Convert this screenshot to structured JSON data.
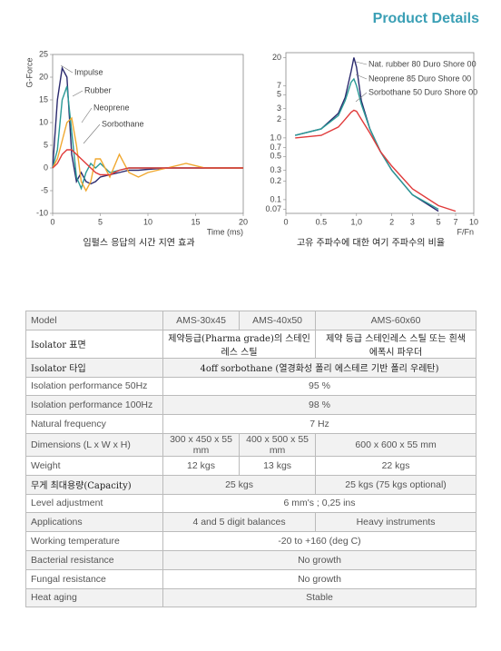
{
  "header": {
    "title": "Product Details"
  },
  "chart_data": [
    {
      "type": "line",
      "caption": "임펄스 응답의 시간 지연 효과",
      "xlabel": "Time (ms)",
      "ylabel": "G-Force",
      "x": [
        0,
        0.5,
        1,
        1.5,
        2,
        2.5,
        3,
        3.5,
        4,
        4.5,
        5,
        6,
        7,
        8,
        9,
        10,
        12,
        14,
        16,
        18,
        20
      ],
      "xlim": [
        0,
        20
      ],
      "xticks": [
        0,
        5,
        10,
        15,
        20
      ],
      "ylim": [
        -10,
        25
      ],
      "yticks": [
        -10,
        -5,
        0,
        5,
        10,
        15,
        20,
        25
      ],
      "grid": false,
      "series": [
        {
          "name": "Impulse",
          "color": "#2b2a6e",
          "values": [
            0,
            15,
            22,
            20,
            3,
            -3,
            -1,
            -3,
            -3.5,
            -3,
            -2,
            -1.5,
            -1,
            -0.5,
            -0.5,
            -0.3,
            0,
            0,
            0,
            0,
            0
          ]
        },
        {
          "name": "Rubber",
          "color": "#2a9a96",
          "values": [
            0,
            4,
            15,
            18,
            8,
            -2,
            -4.5,
            -1,
            1,
            0,
            1,
            -1,
            -0.5,
            0,
            0,
            0,
            0,
            0,
            0,
            0,
            0
          ]
        },
        {
          "name": "Neoprene",
          "color": "#f0a830",
          "values": [
            0,
            2,
            6,
            10,
            11,
            5,
            -3,
            -5,
            -3,
            2,
            2,
            -2,
            3,
            -1,
            -2,
            -1,
            0,
            1,
            0,
            0,
            0
          ]
        },
        {
          "name": "Sorbothane",
          "color": "#e03a3a",
          "values": [
            0,
            1,
            3,
            4,
            4,
            3,
            2,
            1,
            0,
            -1,
            -1.5,
            -1.5,
            -0.5,
            0,
            0,
            0,
            0,
            0,
            0,
            0,
            0
          ]
        }
      ]
    },
    {
      "type": "line",
      "caption": "고유 주파수에 대한 여기 주파수의 비율",
      "xlabel": "F/Fn",
      "xscale": "log",
      "yscale": "log",
      "x": [
        0.3,
        0.5,
        0.7,
        0.8,
        0.9,
        0.95,
        1.0,
        1.1,
        1.3,
        1.6,
        2,
        3,
        5,
        7,
        10
      ],
      "xlim": [
        0.25,
        10
      ],
      "xticks": [
        0,
        0.5,
        {
          "value": 1,
          "label": "1,0"
        },
        2,
        3,
        5,
        7,
        10
      ],
      "ylim": [
        0.06,
        24
      ],
      "yticks": [
        0.07,
        0.1,
        0.2,
        0.3,
        0.5,
        0.7,
        {
          "value": 1,
          "label": "1.0"
        },
        2,
        3,
        5,
        7,
        20
      ],
      "grid": false,
      "series": [
        {
          "name": "Nat. rubber 80 Duro Shore 00",
          "color": "#2b2a6e",
          "values": [
            1.1,
            1.4,
            2.5,
            4.5,
            12,
            20,
            14,
            4,
            1.4,
            0.6,
            0.3,
            0.12,
            0.065,
            null,
            null
          ]
        },
        {
          "name": "Neoprene 85 Duro Shore 00",
          "color": "#2a9a96",
          "values": [
            1.1,
            1.4,
            2.3,
            4,
            8,
            9,
            7,
            3.5,
            1.4,
            0.6,
            0.3,
            0.12,
            0.07,
            null,
            null
          ]
        },
        {
          "name": "Sorbothane 50 Duro Shore 00",
          "color": "#e03a3a",
          "values": [
            1.0,
            1.1,
            1.5,
            2,
            2.6,
            2.8,
            2.7,
            2,
            1.2,
            0.6,
            0.35,
            0.15,
            0.08,
            0.065,
            null
          ]
        }
      ]
    }
  ],
  "table": {
    "rows": [
      [
        "Model",
        "AMS-30x45",
        "AMS-40x50",
        "AMS-60x60"
      ],
      [
        "Isolator 표면",
        "제약등급(Pharma grade)의 스테인레스 스틸",
        "제약 등급 스테인레스 스틸 또는 흰색 에폭시 파우더"
      ],
      [
        "Isolator 타입",
        "4off sorbothane (열경화성 폴리 에스테르 기반 폴리 우레탄)"
      ],
      [
        "Isolation performance 50Hz",
        "95 %"
      ],
      [
        "Isolation performance 100Hz",
        "98 %"
      ],
      [
        "Natural frequency",
        "7 Hz"
      ],
      [
        "Dimensions (L x W x H)",
        "300 x 450 x 55 mm",
        "400 x 500 x 55 mm",
        "600 x 600 x 55 mm"
      ],
      [
        "Weight",
        "12 kgs",
        "13 kgs",
        "22 kgs"
      ],
      [
        "무게 최대용량(Capacity)",
        "25 kgs",
        "25 kgs (75 kgs optional)"
      ],
      [
        "Level adjustment",
        "6 mm's ; 0,25 ins"
      ],
      [
        "Applications",
        "4 and 5 digit balances",
        "Heavy instruments"
      ],
      [
        "Working temperature",
        "-20 to +160 (deg C)"
      ],
      [
        "Bacterial resistance",
        "No growth"
      ],
      [
        "Fungal resistance",
        "No growth"
      ],
      [
        "Heat aging",
        "Stable"
      ]
    ]
  }
}
